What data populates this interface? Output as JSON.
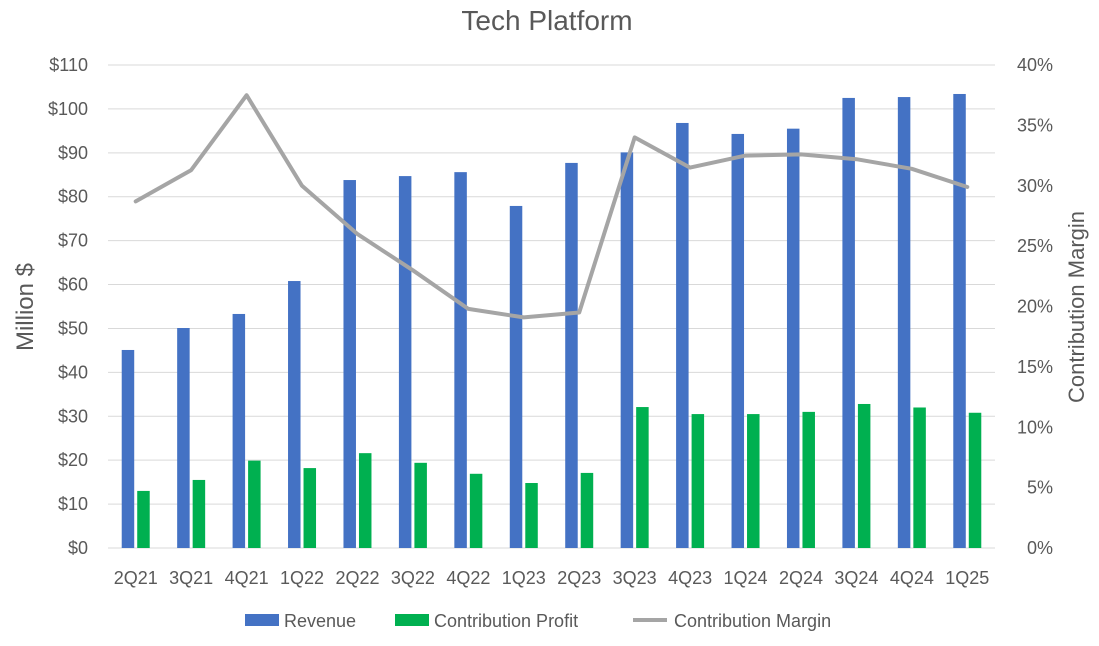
{
  "chart_data": {
    "type": "bar",
    "title": "Tech Platform",
    "ylabel": "Million $",
    "y2label": "Contribution Margin",
    "categories": [
      "2Q21",
      "3Q21",
      "4Q21",
      "1Q22",
      "2Q22",
      "3Q22",
      "4Q22",
      "1Q23",
      "2Q23",
      "3Q23",
      "4Q23",
      "1Q24",
      "2Q24",
      "3Q24",
      "4Q24",
      "1Q25"
    ],
    "series": [
      {
        "name": "Revenue",
        "kind": "bar",
        "axis": "left",
        "color": "#4472C4",
        "values": [
          45.1,
          50.1,
          53.3,
          60.8,
          83.8,
          84.7,
          85.6,
          77.9,
          87.7,
          90.1,
          96.8,
          94.3,
          95.5,
          102.5,
          102.7,
          103.4
        ]
      },
      {
        "name": "Contribution Profit",
        "kind": "bar",
        "axis": "left",
        "color": "#00B050",
        "values": [
          13.0,
          15.5,
          19.9,
          18.2,
          21.6,
          19.4,
          16.9,
          14.8,
          17.1,
          32.1,
          30.5,
          30.5,
          31.0,
          32.8,
          32.0,
          30.8
        ]
      },
      {
        "name": "Contribution Margin",
        "kind": "line",
        "axis": "right",
        "color": "#A5A5A5",
        "values": [
          0.287,
          0.313,
          0.375,
          0.3,
          0.26,
          0.23,
          0.198,
          0.191,
          0.195,
          0.34,
          0.315,
          0.325,
          0.326,
          0.322,
          0.314,
          0.299
        ]
      }
    ],
    "ylim": [
      0,
      110
    ],
    "yticks": [
      "$0",
      "$10",
      "$20",
      "$30",
      "$40",
      "$50",
      "$60",
      "$70",
      "$80",
      "$90",
      "$100",
      "$110"
    ],
    "y2lim": [
      0,
      0.4
    ],
    "y2ticks": [
      "0%",
      "5%",
      "10%",
      "15%",
      "20%",
      "25%",
      "30%",
      "35%",
      "40%"
    ],
    "grid": true,
    "legend_position": "bottom"
  }
}
